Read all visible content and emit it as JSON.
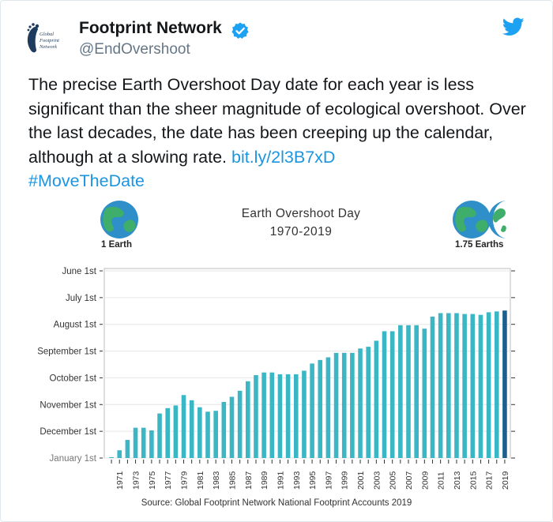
{
  "tweet": {
    "display_name": "Footprint Network",
    "handle": "@EndOvershoot",
    "avatar_text": [
      "Global",
      "Footprint",
      "Network"
    ],
    "text_before_link": "The precise Earth Overshoot Day date for each year is less significant than the sheer magnitude of ecological overshoot. Over the last decades, the date has been creeping up the calendar, although at a slowing rate. ",
    "link": "bit.ly/2l3B7xD",
    "hashtag": "#MoveTheDate",
    "accent_color": "#1da1f2"
  },
  "chart_data": {
    "type": "bar",
    "title": "Earth Overshoot Day",
    "subtitle": "1970-2019",
    "left_label": "1 Earth",
    "right_label": "1.75 Earths",
    "source": "Source: Global Footprint Network National Footprint Accounts 2019",
    "y_tick_labels": [
      "June 1st",
      "July 1st",
      "August 1st",
      "September 1st",
      "October 1st",
      "November 1st",
      "December 1st",
      "January 1st"
    ],
    "x_tick_labels": [
      "1971",
      "1973",
      "1975",
      "1977",
      "1979",
      "1981",
      "1983",
      "1985",
      "1987",
      "1989",
      "1991",
      "1993",
      "1995",
      "1997",
      "1999",
      "2001",
      "2003",
      "2005",
      "2007",
      "2009",
      "2011",
      "2013",
      "2015",
      "2017",
      "2019"
    ],
    "ylim": [
      "Jan 1",
      "Jun 1"
    ],
    "bar_color": "#3bb6c4",
    "highlight_color": "#1c5f8c",
    "years": [
      1970,
      1971,
      1972,
      1973,
      1974,
      1975,
      1976,
      1977,
      1978,
      1979,
      1980,
      1981,
      1982,
      1983,
      1984,
      1985,
      1986,
      1987,
      1988,
      1989,
      1990,
      1991,
      1992,
      1993,
      1994,
      1995,
      1996,
      1997,
      1998,
      1999,
      2000,
      2001,
      2002,
      2003,
      2004,
      2005,
      2006,
      2007,
      2008,
      2009,
      2010,
      2011,
      2012,
      2013,
      2014,
      2015,
      2016,
      2017,
      2018,
      2019
    ],
    "days_before_jan1": [
      1,
      9,
      21,
      35,
      35,
      32,
      51,
      57,
      60,
      72,
      66,
      58,
      53,
      54,
      64,
      70,
      77,
      88,
      95,
      98,
      98,
      96,
      96,
      96,
      100,
      108,
      112,
      115,
      120,
      120,
      120,
      125,
      127,
      134,
      145,
      145,
      152,
      152,
      152,
      148,
      162,
      166,
      166,
      166,
      165,
      165,
      164,
      167,
      168,
      169
    ],
    "grid": true
  }
}
